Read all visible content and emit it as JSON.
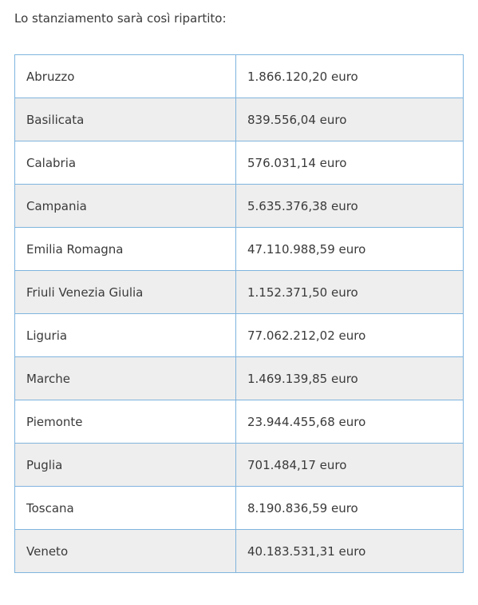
{
  "intro": "Lo stanziamento sarà così ripartito:",
  "rows": [
    {
      "region": "Abruzzo",
      "amount": "1.866.120,20 euro"
    },
    {
      "region": "Basilicata",
      "amount": "839.556,04 euro"
    },
    {
      "region": "Calabria",
      "amount": "576.031,14 euro"
    },
    {
      "region": "Campania",
      "amount": "5.635.376,38 euro"
    },
    {
      "region": "Emilia Romagna",
      "amount": "47.110.988,59 euro"
    },
    {
      "region": "Friuli Venezia Giulia",
      "amount": "1.152.371,50 euro"
    },
    {
      "region": "Liguria",
      "amount": "77.062.212,02 euro"
    },
    {
      "region": "Marche",
      "amount": "1.469.139,85 euro"
    },
    {
      "region": "Piemonte",
      "amount": "23.944.455,68 euro"
    },
    {
      "region": "Puglia",
      "amount": "701.484,17 euro"
    },
    {
      "region": "Toscana",
      "amount": "8.190.836,59 euro"
    },
    {
      "region": "Veneto",
      "amount": "40.183.531,31 euro"
    }
  ]
}
